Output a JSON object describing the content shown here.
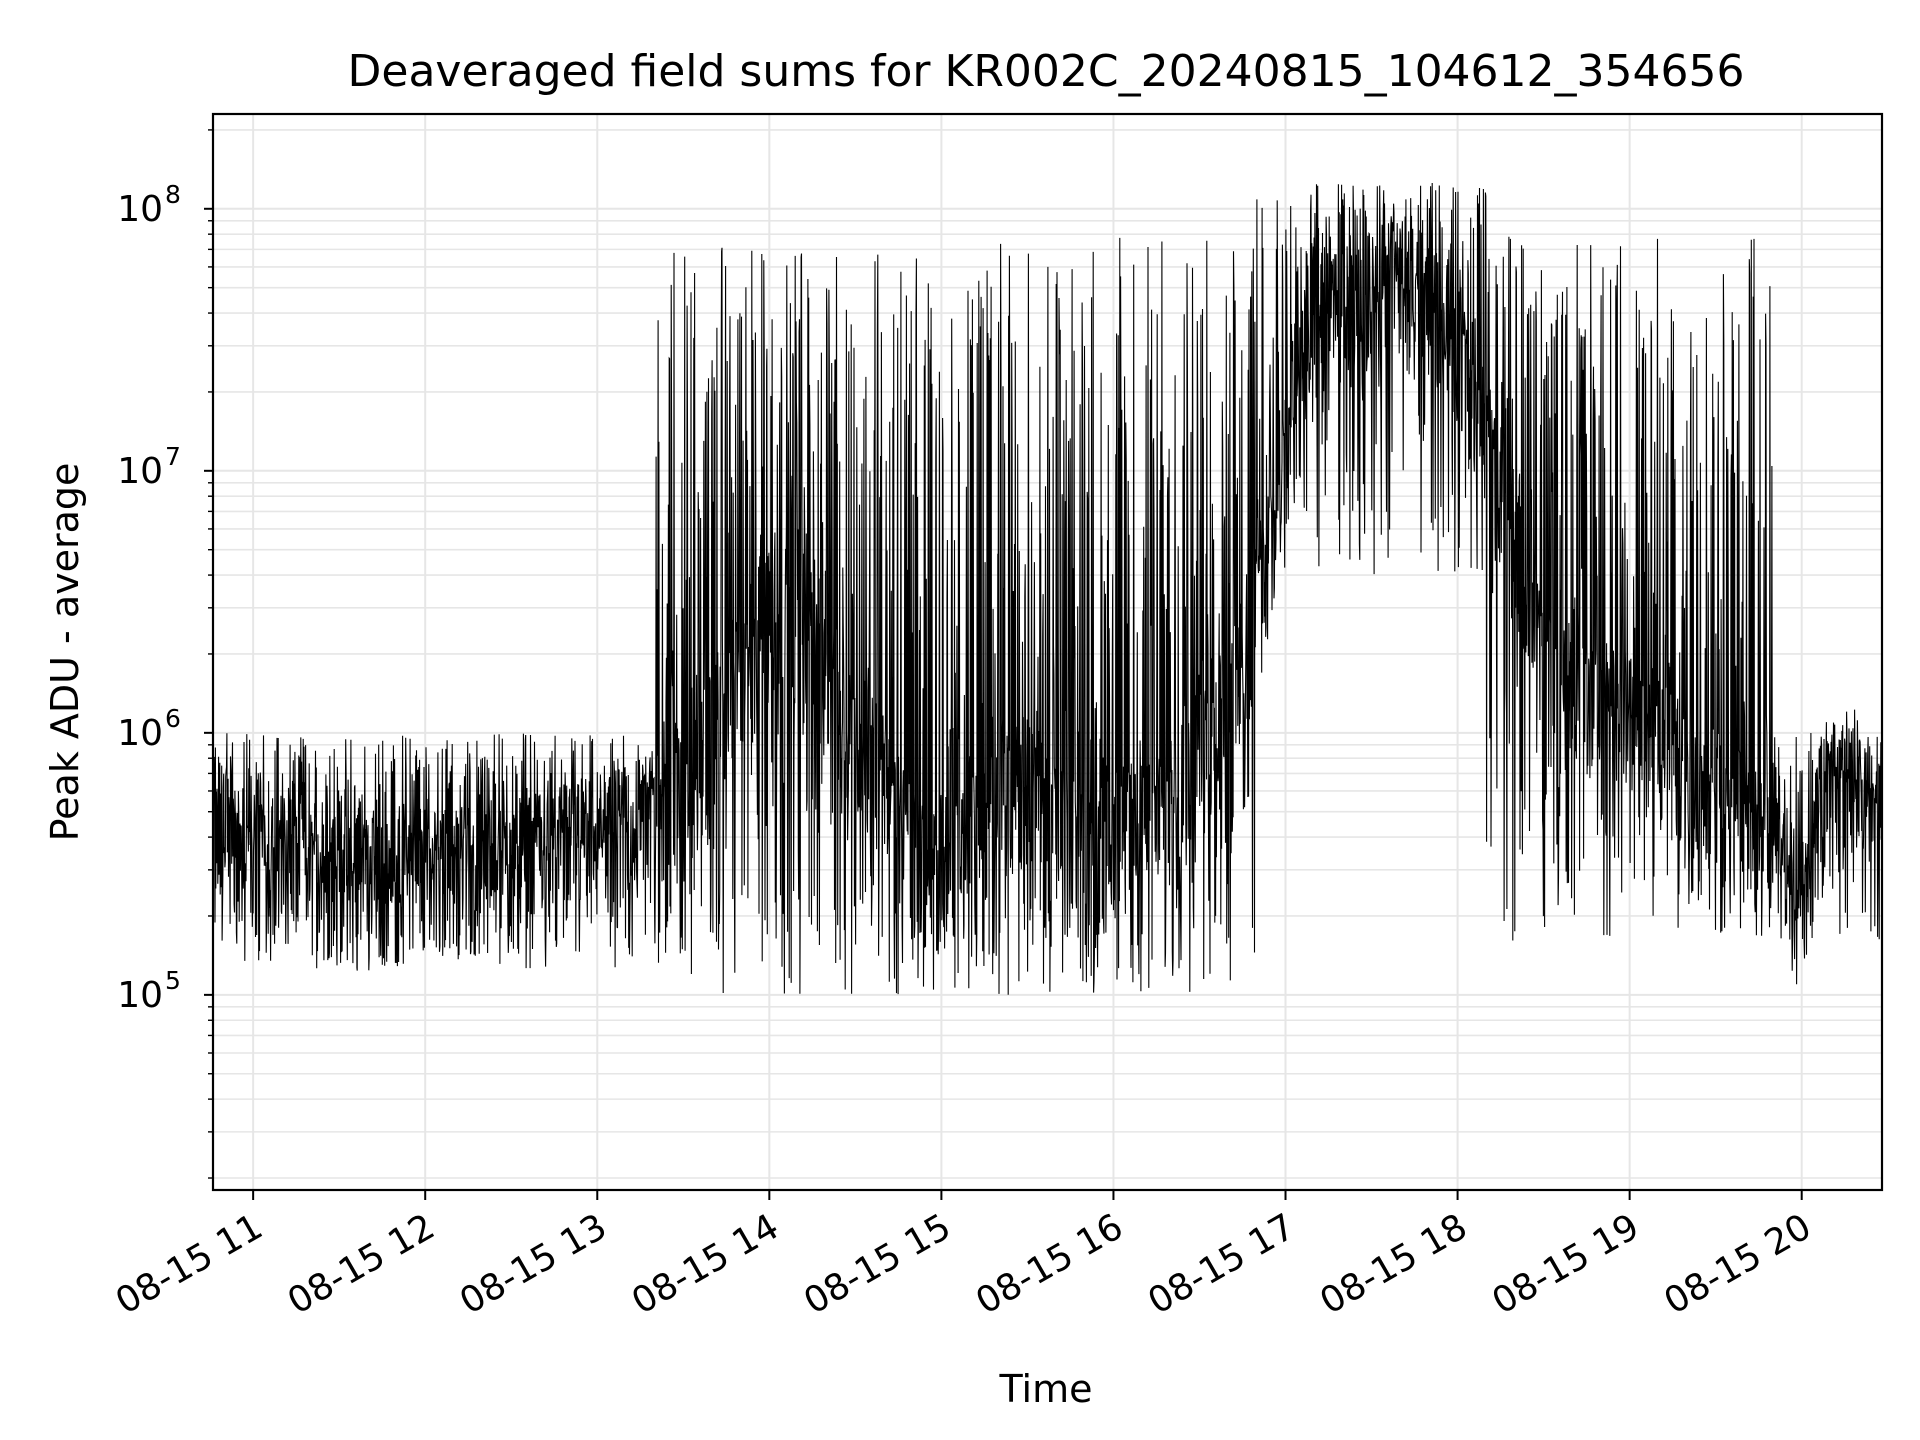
{
  "chart_data": {
    "type": "line",
    "title": "Deaveraged field sums for KR002C_20240815_104612_354656",
    "xlabel": "Time",
    "ylabel": "Peak ADU - average",
    "yscale": "log",
    "grid": true,
    "line_color": "#000000",
    "grid_color": "#e6e6e6",
    "xlim": [
      "2024-08-15 10:46",
      "2024-08-15 20:28"
    ],
    "ylim": [
      18000,
      230000000
    ],
    "x_ticks": [
      {
        "t": "2024-08-15 11:00",
        "label": "08-15 11"
      },
      {
        "t": "2024-08-15 12:00",
        "label": "08-15 12"
      },
      {
        "t": "2024-08-15 13:00",
        "label": "08-15 13"
      },
      {
        "t": "2024-08-15 14:00",
        "label": "08-15 14"
      },
      {
        "t": "2024-08-15 15:00",
        "label": "08-15 15"
      },
      {
        "t": "2024-08-15 16:00",
        "label": "08-15 16"
      },
      {
        "t": "2024-08-15 17:00",
        "label": "08-15 17"
      },
      {
        "t": "2024-08-15 18:00",
        "label": "08-15 18"
      },
      {
        "t": "2024-08-15 19:00",
        "label": "08-15 19"
      },
      {
        "t": "2024-08-15 20:00",
        "label": "08-15 20"
      }
    ],
    "y_ticks": [
      {
        "value": 100000,
        "base": "10",
        "exp": "5"
      },
      {
        "value": 1000000,
        "base": "10",
        "exp": "6"
      },
      {
        "value": 10000000,
        "base": "10",
        "exp": "7"
      },
      {
        "value": 100000000,
        "base": "10",
        "exp": "8"
      }
    ],
    "series": [
      {
        "points": [
          [
            "2024-08-15 10:46",
            450000
          ],
          [
            "2024-08-15 11:00",
            280000
          ],
          [
            "2024-08-15 11:15",
            320000
          ],
          [
            "2024-08-15 11:30",
            240000
          ],
          [
            "2024-08-15 12:00",
            260000
          ],
          [
            "2024-08-15 12:30",
            290000
          ],
          [
            "2024-08-15 13:00",
            350000
          ],
          [
            "2024-08-15 13:30",
            500000
          ],
          [
            "2024-08-15 14:00",
            3000000
          ],
          [
            "2024-08-15 14:30",
            1000000
          ],
          [
            "2024-08-15 14:55",
            250000
          ],
          [
            "2024-08-15 15:30",
            600000
          ],
          [
            "2024-08-15 15:50",
            300000
          ],
          [
            "2024-08-15 16:20",
            500000
          ],
          [
            "2024-08-15 16:50",
            2500000
          ],
          [
            "2024-08-15 17:10",
            30000000
          ],
          [
            "2024-08-15 17:40",
            50000000
          ],
          [
            "2024-08-15 18:00",
            30000000
          ],
          [
            "2024-08-15 18:30",
            2000000
          ],
          [
            "2024-08-15 19:00",
            1000000
          ],
          [
            "2024-08-15 19:45",
            400000
          ],
          [
            "2024-08-15 20:00",
            200000
          ],
          [
            "2024-08-15 20:10",
            700000
          ],
          [
            "2024-08-15 20:28",
            550000
          ]
        ]
      }
    ]
  }
}
